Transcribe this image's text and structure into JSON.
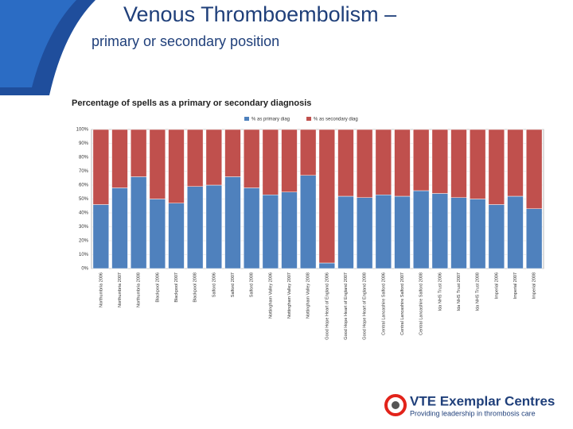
{
  "slide": {
    "title": "Venous Thromboembolism –",
    "subtitle": "primary or secondary position"
  },
  "chart_data": {
    "type": "bar",
    "stacked": true,
    "title": "Percentage of spells as a primary  or secondary diagnosis",
    "categories": [
      "Northumbria 2006",
      "Northumbria 2007",
      "Northumbria 2008",
      "Blackpool 2006",
      "Blackpool 2007",
      "Blackpool 2008",
      "Salford 2006",
      "Salford 2007",
      "Salford 2008",
      "Nottingham Valley 2006",
      "Nottingham Valley 2007",
      "Nottingham Valley 2008",
      "Good Hope Heart of England 2006",
      "Good Hope Heart of England 2007",
      "Good Hope Heart of England 2008",
      "Central Lancashire Salford 2006",
      "Central Lancashire Salford 2007",
      "Central Lancashire Salford 2008",
      "Ida NHS Trust 2006",
      "Ida NHS Trust 2007",
      "Ida NHS Trust 2008",
      "Imperial 2006",
      "Imperial 2007",
      "Imperial 2008"
    ],
    "series": [
      {
        "name": "% as primary diag",
        "color": "#4f81bd",
        "values": [
          46,
          58,
          66,
          50,
          47,
          59,
          60,
          66,
          58,
          53,
          55,
          67,
          4,
          52,
          51,
          53,
          52,
          56,
          54,
          51,
          50,
          46,
          52,
          43
        ]
      },
      {
        "name": "% as secondary diag",
        "color": "#c0504d",
        "values": [
          54,
          42,
          34,
          50,
          53,
          41,
          40,
          34,
          42,
          47,
          45,
          33,
          96,
          48,
          49,
          47,
          48,
          44,
          46,
          49,
          50,
          54,
          48,
          57
        ]
      }
    ],
    "ylim": [
      0,
      100
    ],
    "yticks": [
      {
        "value": 0,
        "label": "0%"
      },
      {
        "value": 10,
        "label": "10%"
      },
      {
        "value": 20,
        "label": "20%"
      },
      {
        "value": 30,
        "label": "30%"
      },
      {
        "value": 40,
        "label": "40%"
      },
      {
        "value": 50,
        "label": "50%"
      },
      {
        "value": 60,
        "label": "60%"
      },
      {
        "value": 70,
        "label": "70%"
      },
      {
        "value": 80,
        "label": "80%"
      },
      {
        "value": 90,
        "label": "90%"
      },
      {
        "value": 100,
        "label": "100%"
      }
    ],
    "grid": true,
    "legend": "top"
  },
  "logo": {
    "title": "VTE Exemplar Centres",
    "tagline": "Providing leadership in thrombosis care"
  }
}
